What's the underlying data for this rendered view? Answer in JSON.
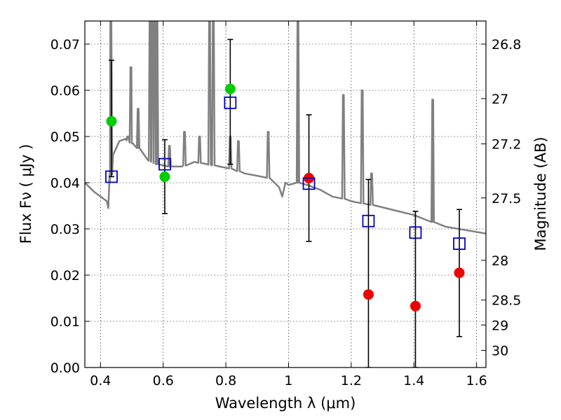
{
  "chart_data": {
    "type": "scatter",
    "xlabel": "Wavelength  λ (μm)",
    "ylabel": "Flux  Fν  ( μJy )",
    "y2label": "Magnitude (AB)",
    "xlim": [
      0.35,
      1.63
    ],
    "ylim": [
      0.0,
      0.075
    ],
    "grid": true,
    "x_ticks": [
      0.4,
      0.6,
      0.8,
      1.0,
      1.2,
      1.4,
      1.6
    ],
    "x_tick_labels": [
      "0.4",
      "0.6",
      "0.8",
      "1",
      "1.2",
      "1.4",
      "1.6"
    ],
    "y_ticks": [
      0.0,
      0.01,
      0.02,
      0.03,
      0.04,
      0.05,
      0.06,
      0.07
    ],
    "y_tick_labels": [
      "0.00",
      "0.01",
      "0.02",
      "0.03",
      "0.04",
      "0.05",
      "0.06",
      "0.07"
    ],
    "mag_ticks": [
      {
        "label": "26.8",
        "flux": 0.07
      },
      {
        "label": "27",
        "flux": 0.0582
      },
      {
        "label": "27.2",
        "flux": 0.0484
      },
      {
        "label": "27.5",
        "flux": 0.0367
      },
      {
        "label": "28",
        "flux": 0.0232
      },
      {
        "label": "28.5",
        "flux": 0.0146
      },
      {
        "label": "29",
        "flux": 0.0092
      },
      {
        "label": "30",
        "flux": 0.0037
      }
    ],
    "template_spectrum": {
      "color": "#808080",
      "continuum": [
        [
          0.35,
          0.04
        ],
        [
          0.38,
          0.038
        ],
        [
          0.4,
          0.037
        ],
        [
          0.42,
          0.036
        ],
        [
          0.425,
          0.0345
        ],
        [
          0.43,
          0.04
        ],
        [
          0.44,
          0.046
        ],
        [
          0.46,
          0.049
        ],
        [
          0.48,
          0.0495
        ],
        [
          0.5,
          0.0485
        ],
        [
          0.52,
          0.0475
        ],
        [
          0.55,
          0.045
        ],
        [
          0.58,
          0.044
        ],
        [
          0.62,
          0.0435
        ],
        [
          0.66,
          0.0435
        ],
        [
          0.7,
          0.0445
        ],
        [
          0.74,
          0.044
        ],
        [
          0.78,
          0.0435
        ],
        [
          0.82,
          0.043
        ],
        [
          0.86,
          0.042
        ],
        [
          0.9,
          0.0415
        ],
        [
          0.94,
          0.041
        ],
        [
          0.97,
          0.039
        ],
        [
          0.98,
          0.037
        ],
        [
          0.99,
          0.04
        ],
        [
          1.0,
          0.0395
        ],
        [
          1.03,
          0.04
        ],
        [
          1.06,
          0.0395
        ],
        [
          1.1,
          0.0385
        ],
        [
          1.14,
          0.037
        ],
        [
          1.18,
          0.0365
        ],
        [
          1.2,
          0.036
        ],
        [
          1.24,
          0.0355
        ],
        [
          1.28,
          0.035
        ],
        [
          1.34,
          0.034
        ],
        [
          1.4,
          0.033
        ],
        [
          1.46,
          0.0315
        ],
        [
          1.5,
          0.0305
        ],
        [
          1.56,
          0.0298
        ],
        [
          1.63,
          0.029
        ]
      ],
      "emission_lines": [
        {
          "x": 0.433,
          "peak": 0.075
        },
        {
          "x": 0.487,
          "peak": 0.05
        },
        {
          "x": 0.497,
          "peak": 0.065
        },
        {
          "x": 0.52,
          "peak": 0.056
        },
        {
          "x": 0.558,
          "peak": 0.075
        },
        {
          "x": 0.565,
          "peak": 0.075
        },
        {
          "x": 0.573,
          "peak": 0.075
        },
        {
          "x": 0.58,
          "peak": 0.075
        },
        {
          "x": 0.62,
          "peak": 0.048
        },
        {
          "x": 0.668,
          "peak": 0.051
        },
        {
          "x": 0.716,
          "peak": 0.05
        },
        {
          "x": 0.748,
          "peak": 0.075
        },
        {
          "x": 0.76,
          "peak": 0.075
        },
        {
          "x": 0.814,
          "peak": 0.05
        },
        {
          "x": 0.84,
          "peak": 0.049
        },
        {
          "x": 0.935,
          "peak": 0.051
        },
        {
          "x": 1.03,
          "peak": 0.075
        },
        {
          "x": 1.175,
          "peak": 0.059
        },
        {
          "x": 1.235,
          "peak": 0.06
        },
        {
          "x": 1.265,
          "peak": 0.042
        },
        {
          "x": 1.46,
          "peak": 0.058
        }
      ]
    },
    "series": [
      {
        "marker": "circle",
        "color": "#00cc00",
        "points": [
          {
            "x": 0.435,
            "y": 0.0533
          },
          {
            "x": 0.605,
            "y": 0.0413
          },
          {
            "x": 0.814,
            "y": 0.0603
          }
        ]
      },
      {
        "marker": "circle",
        "color": "#ee0000",
        "points": [
          {
            "x": 1.065,
            "y": 0.041
          },
          {
            "x": 1.255,
            "y": 0.0158
          },
          {
            "x": 1.405,
            "y": 0.0133
          },
          {
            "x": 1.545,
            "y": 0.0205
          }
        ]
      },
      {
        "marker": "open-square",
        "color": "#0000cc",
        "points": [
          {
            "x": 0.435,
            "y": 0.0413,
            "yerr_low": 0.0413,
            "yerr_high": 0.0665
          },
          {
            "x": 0.605,
            "y": 0.044,
            "yerr_low": 0.0333,
            "yerr_high": 0.0493
          },
          {
            "x": 0.814,
            "y": 0.0573,
            "yerr_low": 0.044,
            "yerr_high": 0.071
          },
          {
            "x": 1.065,
            "y": 0.0398,
            "yerr_low": 0.0273,
            "yerr_high": 0.0547
          },
          {
            "x": 1.255,
            "y": 0.0317,
            "yerr_low": 0.0,
            "yerr_high": 0.0407
          },
          {
            "x": 1.405,
            "y": 0.0292,
            "yerr_low": 0.0,
            "yerr_high": 0.0338
          },
          {
            "x": 1.545,
            "y": 0.0268,
            "yerr_low": 0.0067,
            "yerr_high": 0.0342
          }
        ]
      }
    ]
  }
}
